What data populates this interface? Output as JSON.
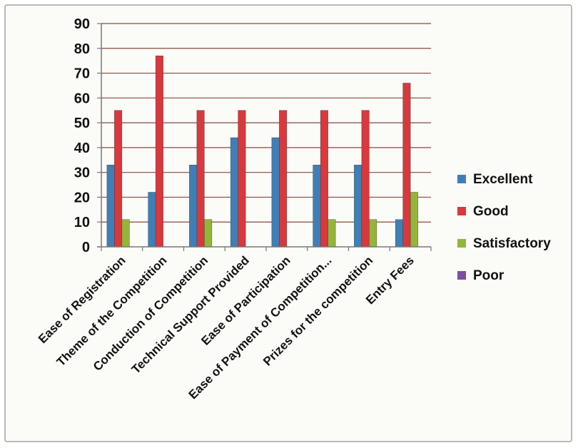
{
  "chart_data": {
    "type": "bar",
    "title": "",
    "xlabel": "",
    "ylabel": "",
    "ylim": [
      0,
      90
    ],
    "yticks": [
      0,
      10,
      20,
      30,
      40,
      50,
      60,
      70,
      80,
      90
    ],
    "grid": true,
    "legend_position": "right",
    "categories": [
      "Ease of Registration",
      "Theme of the Competition",
      "Conduction of Competition",
      "Technical Support Provided",
      "Ease of Participation",
      "Ease of Payment of Competition...",
      "Prizes for the competition",
      "Entry Fees"
    ],
    "series": [
      {
        "name": "Excellent",
        "color": "#3f7fb8",
        "values": [
          33,
          22,
          33,
          44,
          44,
          33,
          33,
          11
        ]
      },
      {
        "name": "Good",
        "color": "#d9383c",
        "values": [
          55,
          77,
          55,
          55,
          55,
          55,
          55,
          66
        ]
      },
      {
        "name": "Satisfactory",
        "color": "#93b63a",
        "values": [
          11,
          0,
          11,
          0,
          0,
          11,
          11,
          22
        ]
      },
      {
        "name": "Poor",
        "color": "#7d4fa0",
        "values": [
          0,
          0,
          0,
          0,
          0,
          0,
          0,
          0
        ]
      }
    ]
  }
}
